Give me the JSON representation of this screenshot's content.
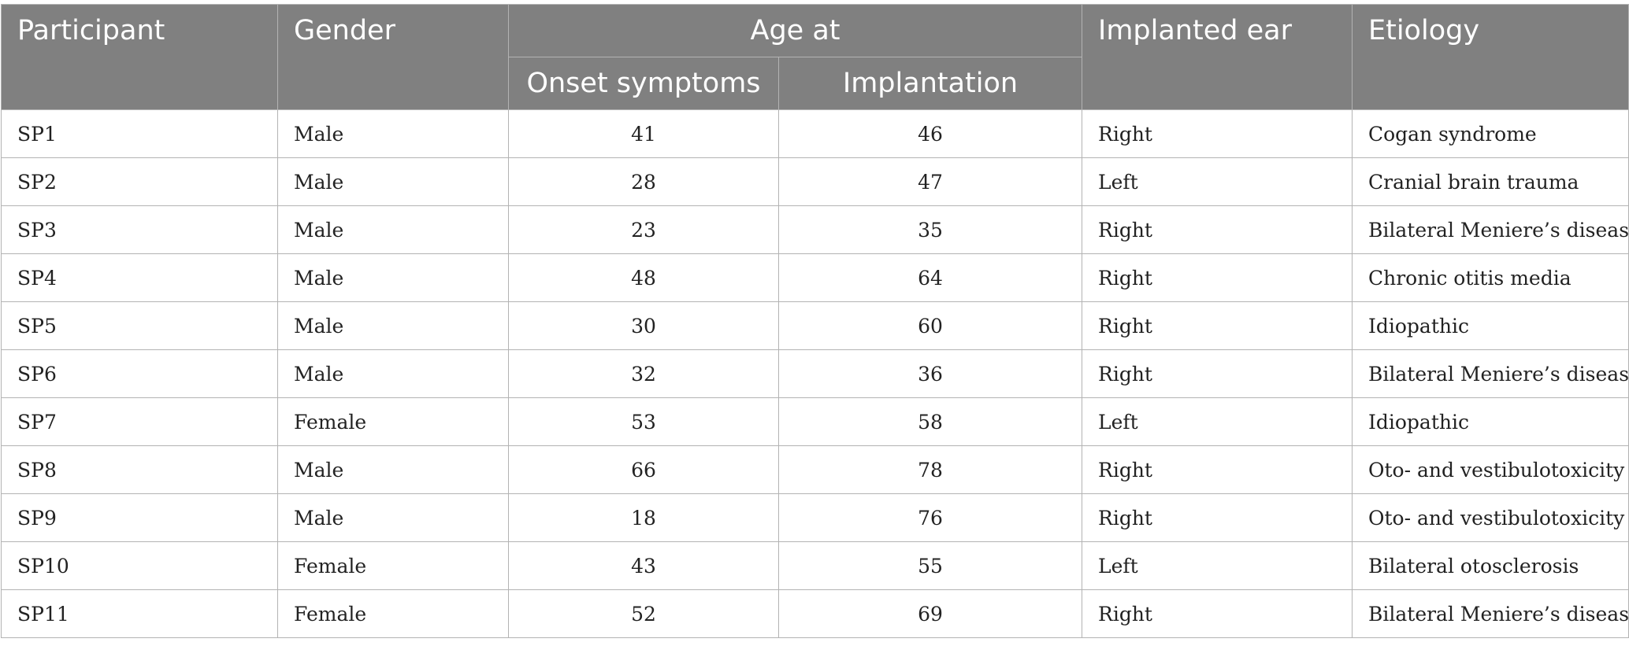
{
  "table": {
    "headers": {
      "participant": "Participant",
      "gender": "Gender",
      "age_at": "Age at",
      "onset": "Onset symptoms",
      "implantation": "Implantation",
      "implanted_ear": "Implanted ear",
      "etiology": "Etiology"
    },
    "rows": [
      {
        "participant": "SP1",
        "gender": "Male",
        "onset": "41",
        "implantation": "46",
        "ear": "Right",
        "etiology": "Cogan syndrome"
      },
      {
        "participant": "SP2",
        "gender": "Male",
        "onset": "28",
        "implantation": "47",
        "ear": "Left",
        "etiology": "Cranial brain trauma"
      },
      {
        "participant": "SP3",
        "gender": "Male",
        "onset": "23",
        "implantation": "35",
        "ear": "Right",
        "etiology": "Bilateral Meniere’s disease"
      },
      {
        "participant": "SP4",
        "gender": "Male",
        "onset": "48",
        "implantation": "64",
        "ear": "Right",
        "etiology": "Chronic otitis media"
      },
      {
        "participant": "SP5",
        "gender": "Male",
        "onset": "30",
        "implantation": "60",
        "ear": "Right",
        "etiology": "Idiopathic"
      },
      {
        "participant": "SP6",
        "gender": "Male",
        "onset": "32",
        "implantation": "36",
        "ear": "Right",
        "etiology": "Bilateral Meniere’s disease"
      },
      {
        "participant": "SP7",
        "gender": "Female",
        "onset": "53",
        "implantation": "58",
        "ear": "Left",
        "etiology": "Idiopathic"
      },
      {
        "participant": "SP8",
        "gender": "Male",
        "onset": "66",
        "implantation": "78",
        "ear": "Right",
        "etiology": "Oto- and vestibulotoxicity"
      },
      {
        "participant": "SP9",
        "gender": "Male",
        "onset": "18",
        "implantation": "76",
        "ear": "Right",
        "etiology": "Oto- and vestibulotoxicity"
      },
      {
        "participant": "SP10",
        "gender": "Female",
        "onset": "43",
        "implantation": "55",
        "ear": "Left",
        "etiology": "Bilateral otosclerosis"
      },
      {
        "participant": "SP11",
        "gender": "Female",
        "onset": "52",
        "implantation": "69",
        "ear": "Right",
        "etiology": "Bilateral Meniere’s disease"
      }
    ]
  },
  "colors": {
    "header_bg": "#808080",
    "header_text": "#ffffff",
    "border": "#b3b3b3",
    "body_text": "#222222"
  }
}
